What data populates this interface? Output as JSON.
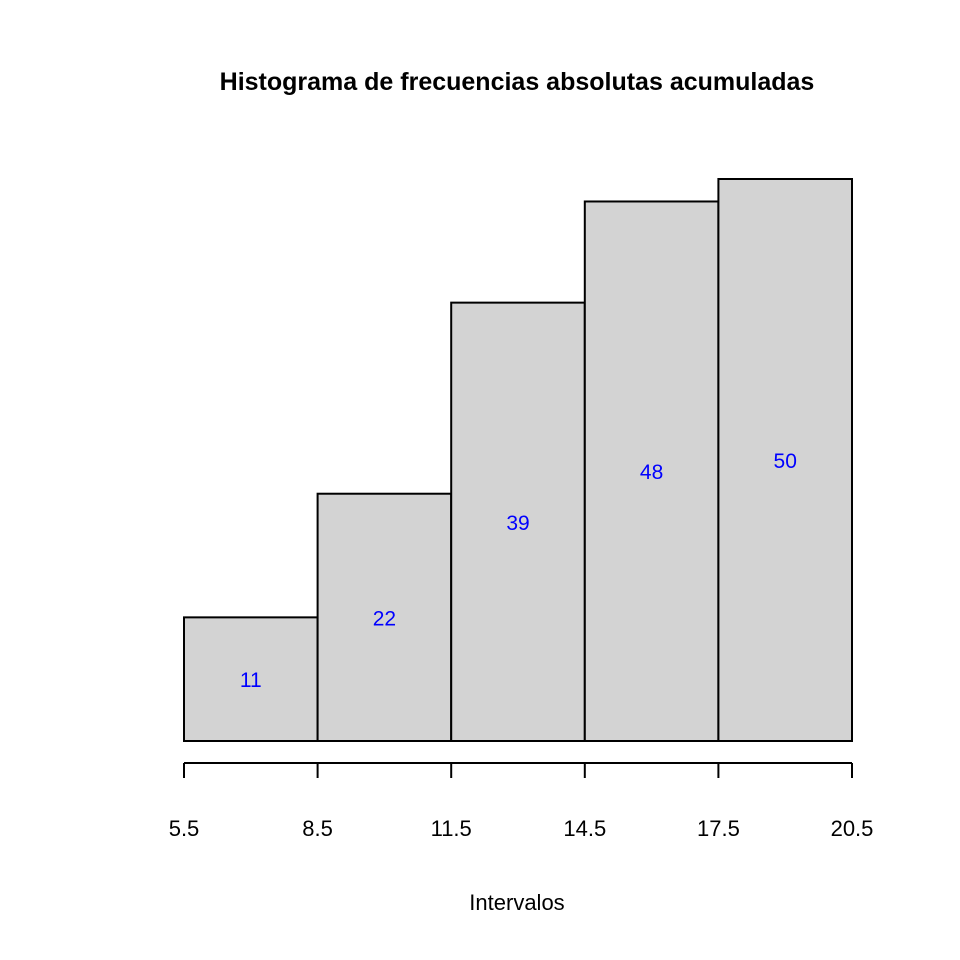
{
  "chart_data": {
    "type": "bar",
    "title": "Histograma de frecuencias absolutas acumuladas",
    "xlabel": "Intervalos",
    "ylabel": "",
    "bin_edges": [
      5.5,
      8.5,
      11.5,
      14.5,
      17.5,
      20.5
    ],
    "tick_labels": [
      "5.5",
      "8.5",
      "11.5",
      "14.5",
      "17.5",
      "20.5"
    ],
    "values": [
      11,
      22,
      39,
      48,
      50
    ],
    "data_labels": [
      "11",
      "22",
      "39",
      "48",
      "50"
    ],
    "ylim": [
      0,
      50
    ],
    "y_axis_shown": false,
    "grid": false,
    "bar_fill": "#d3d3d3",
    "bar_border": "#000000",
    "label_color": "#0000ff"
  }
}
